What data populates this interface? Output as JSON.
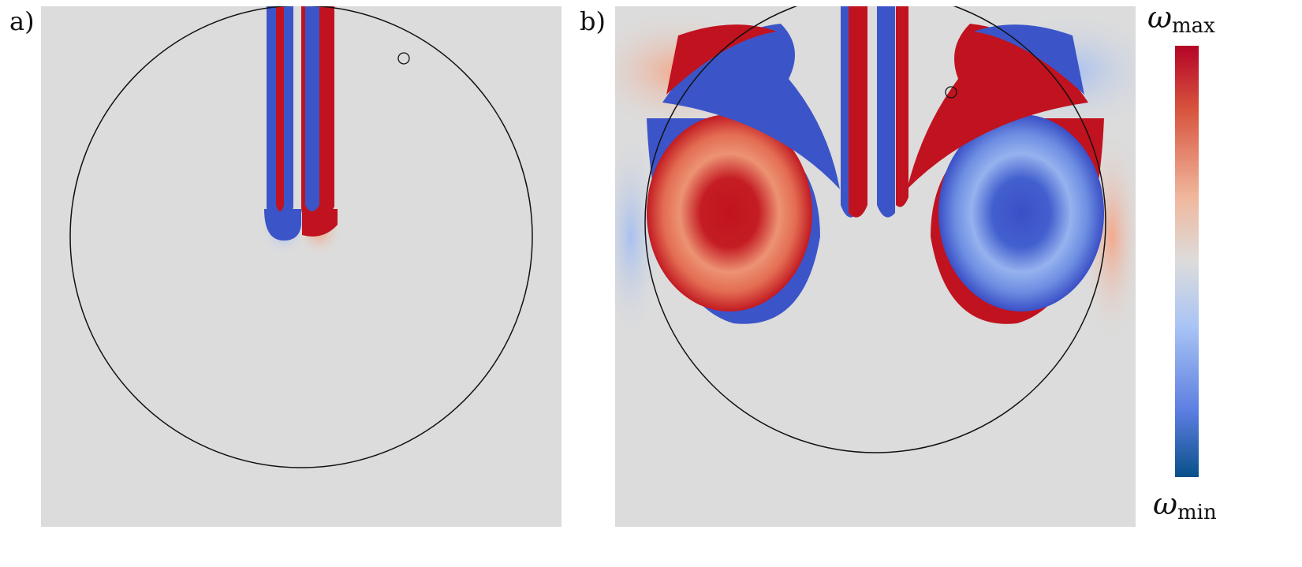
{
  "panels": [
    {
      "label": "a)"
    },
    {
      "label": "b)"
    }
  ],
  "colorbar": {
    "max_label": {
      "symbol": "ω",
      "subscript": "max"
    },
    "min_label": {
      "symbol": "ω",
      "subscript": "min"
    }
  }
}
